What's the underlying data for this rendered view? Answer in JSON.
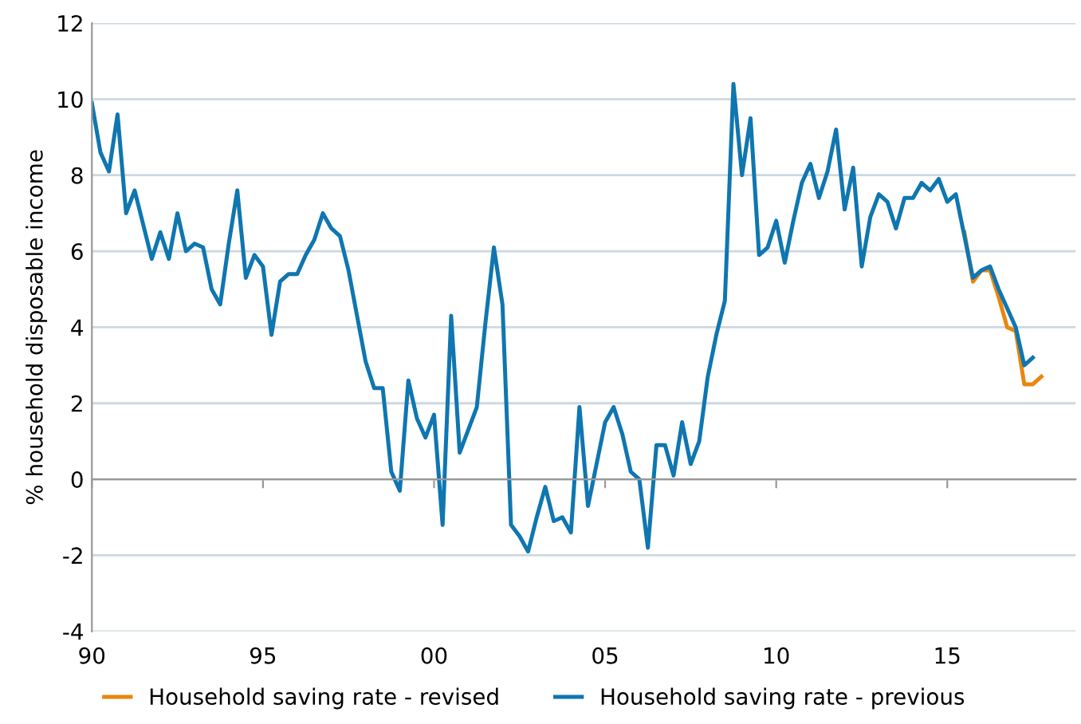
{
  "chart_data": {
    "type": "line",
    "ylabel": "% household disposable income",
    "x": [
      1990,
      1990.25,
      1990.5,
      1990.75,
      1991,
      1991.25,
      1991.5,
      1991.75,
      1992,
      1992.25,
      1992.5,
      1992.75,
      1993,
      1993.25,
      1993.5,
      1993.75,
      1994,
      1994.25,
      1994.5,
      1994.75,
      1995,
      1995.25,
      1995.5,
      1995.75,
      1996,
      1996.25,
      1996.5,
      1996.75,
      1997,
      1997.25,
      1997.5,
      1997.75,
      1998,
      1998.25,
      1998.5,
      1998.75,
      1999,
      1999.25,
      1999.5,
      1999.75,
      2000,
      2000.25,
      2000.5,
      2000.75,
      2001,
      2001.25,
      2001.5,
      2001.75,
      2002,
      2002.25,
      2002.5,
      2002.75,
      2003,
      2003.25,
      2003.5,
      2003.75,
      2004,
      2004.25,
      2004.5,
      2004.75,
      2005,
      2005.25,
      2005.5,
      2005.75,
      2006,
      2006.25,
      2006.5,
      2006.75,
      2007,
      2007.25,
      2007.5,
      2007.75,
      2008,
      2008.25,
      2008.5,
      2008.75,
      2009,
      2009.25,
      2009.5,
      2009.75,
      2010,
      2010.25,
      2010.5,
      2010.75,
      2011,
      2011.25,
      2011.5,
      2011.75,
      2012,
      2012.25,
      2012.5,
      2012.75,
      2013,
      2013.25,
      2013.5,
      2013.75,
      2014,
      2014.25,
      2014.5,
      2014.75,
      2015,
      2015.25,
      2015.5,
      2015.75,
      2016,
      2016.25,
      2016.5,
      2016.75,
      2017,
      2017.25,
      2017.5,
      2017.75
    ],
    "series": [
      {
        "name": "Household saving rate - revised",
        "color": "#e8870e",
        "values": [
          null,
          null,
          null,
          null,
          null,
          null,
          null,
          null,
          null,
          null,
          null,
          null,
          null,
          null,
          null,
          null,
          null,
          null,
          null,
          null,
          null,
          null,
          null,
          null,
          null,
          null,
          null,
          null,
          null,
          null,
          null,
          null,
          null,
          null,
          null,
          null,
          null,
          null,
          null,
          null,
          null,
          null,
          null,
          null,
          null,
          null,
          null,
          null,
          null,
          null,
          null,
          null,
          null,
          null,
          null,
          null,
          null,
          null,
          null,
          null,
          null,
          null,
          null,
          null,
          null,
          null,
          null,
          null,
          null,
          null,
          null,
          null,
          null,
          null,
          null,
          null,
          null,
          null,
          null,
          null,
          null,
          null,
          null,
          null,
          null,
          null,
          null,
          null,
          null,
          null,
          null,
          null,
          null,
          null,
          null,
          null,
          null,
          null,
          null,
          null,
          null,
          null,
          6.5,
          5.2,
          5.5,
          5.5,
          4.8,
          4.0,
          3.9,
          2.5,
          2.5,
          2.7
        ]
      },
      {
        "name": "Household saving rate - previous",
        "color": "#0f76b0",
        "values": [
          9.9,
          8.6,
          8.1,
          9.6,
          7.0,
          7.6,
          6.7,
          5.8,
          6.5,
          5.8,
          7.0,
          6.0,
          6.2,
          6.1,
          5.0,
          4.6,
          6.2,
          7.6,
          5.3,
          5.9,
          5.6,
          3.8,
          5.2,
          5.4,
          5.4,
          5.9,
          6.3,
          7.0,
          6.6,
          6.4,
          5.5,
          4.3,
          3.1,
          2.4,
          2.4,
          0.2,
          -0.3,
          2.6,
          1.6,
          1.1,
          1.7,
          -1.2,
          4.3,
          0.7,
          1.3,
          1.9,
          4.1,
          6.1,
          4.6,
          -1.2,
          -1.5,
          -1.9,
          -1.0,
          -0.2,
          -1.1,
          -1.0,
          -1.4,
          1.9,
          -0.7,
          0.4,
          1.5,
          1.9,
          1.2,
          0.2,
          0.0,
          -1.8,
          0.9,
          0.9,
          0.1,
          1.5,
          0.4,
          1.0,
          2.7,
          3.8,
          4.7,
          10.4,
          8.0,
          9.5,
          5.9,
          6.1,
          6.8,
          5.7,
          6.8,
          7.8,
          8.3,
          7.4,
          8.1,
          9.2,
          7.1,
          8.2,
          5.6,
          6.9,
          7.5,
          7.3,
          6.6,
          7.4,
          7.4,
          7.8,
          7.6,
          7.9,
          7.3,
          7.5,
          6.4,
          5.3,
          5.5,
          5.6,
          5.0,
          4.5,
          4.0,
          3.0,
          3.2,
          null
        ]
      }
    ],
    "xlim": [
      1990,
      2018.75
    ],
    "xticks": [
      {
        "value": 1990,
        "label": "90"
      },
      {
        "value": 1995,
        "label": "95"
      },
      {
        "value": 2000,
        "label": "00"
      },
      {
        "value": 2005,
        "label": "05"
      },
      {
        "value": 2010,
        "label": "10"
      },
      {
        "value": 2015,
        "label": "15"
      }
    ],
    "ylim": [
      -4,
      12
    ],
    "yticks": [
      -4,
      -2,
      0,
      2,
      4,
      6,
      8,
      10,
      12
    ],
    "grid": "y",
    "legend": "bottom",
    "line_style": "solid"
  }
}
